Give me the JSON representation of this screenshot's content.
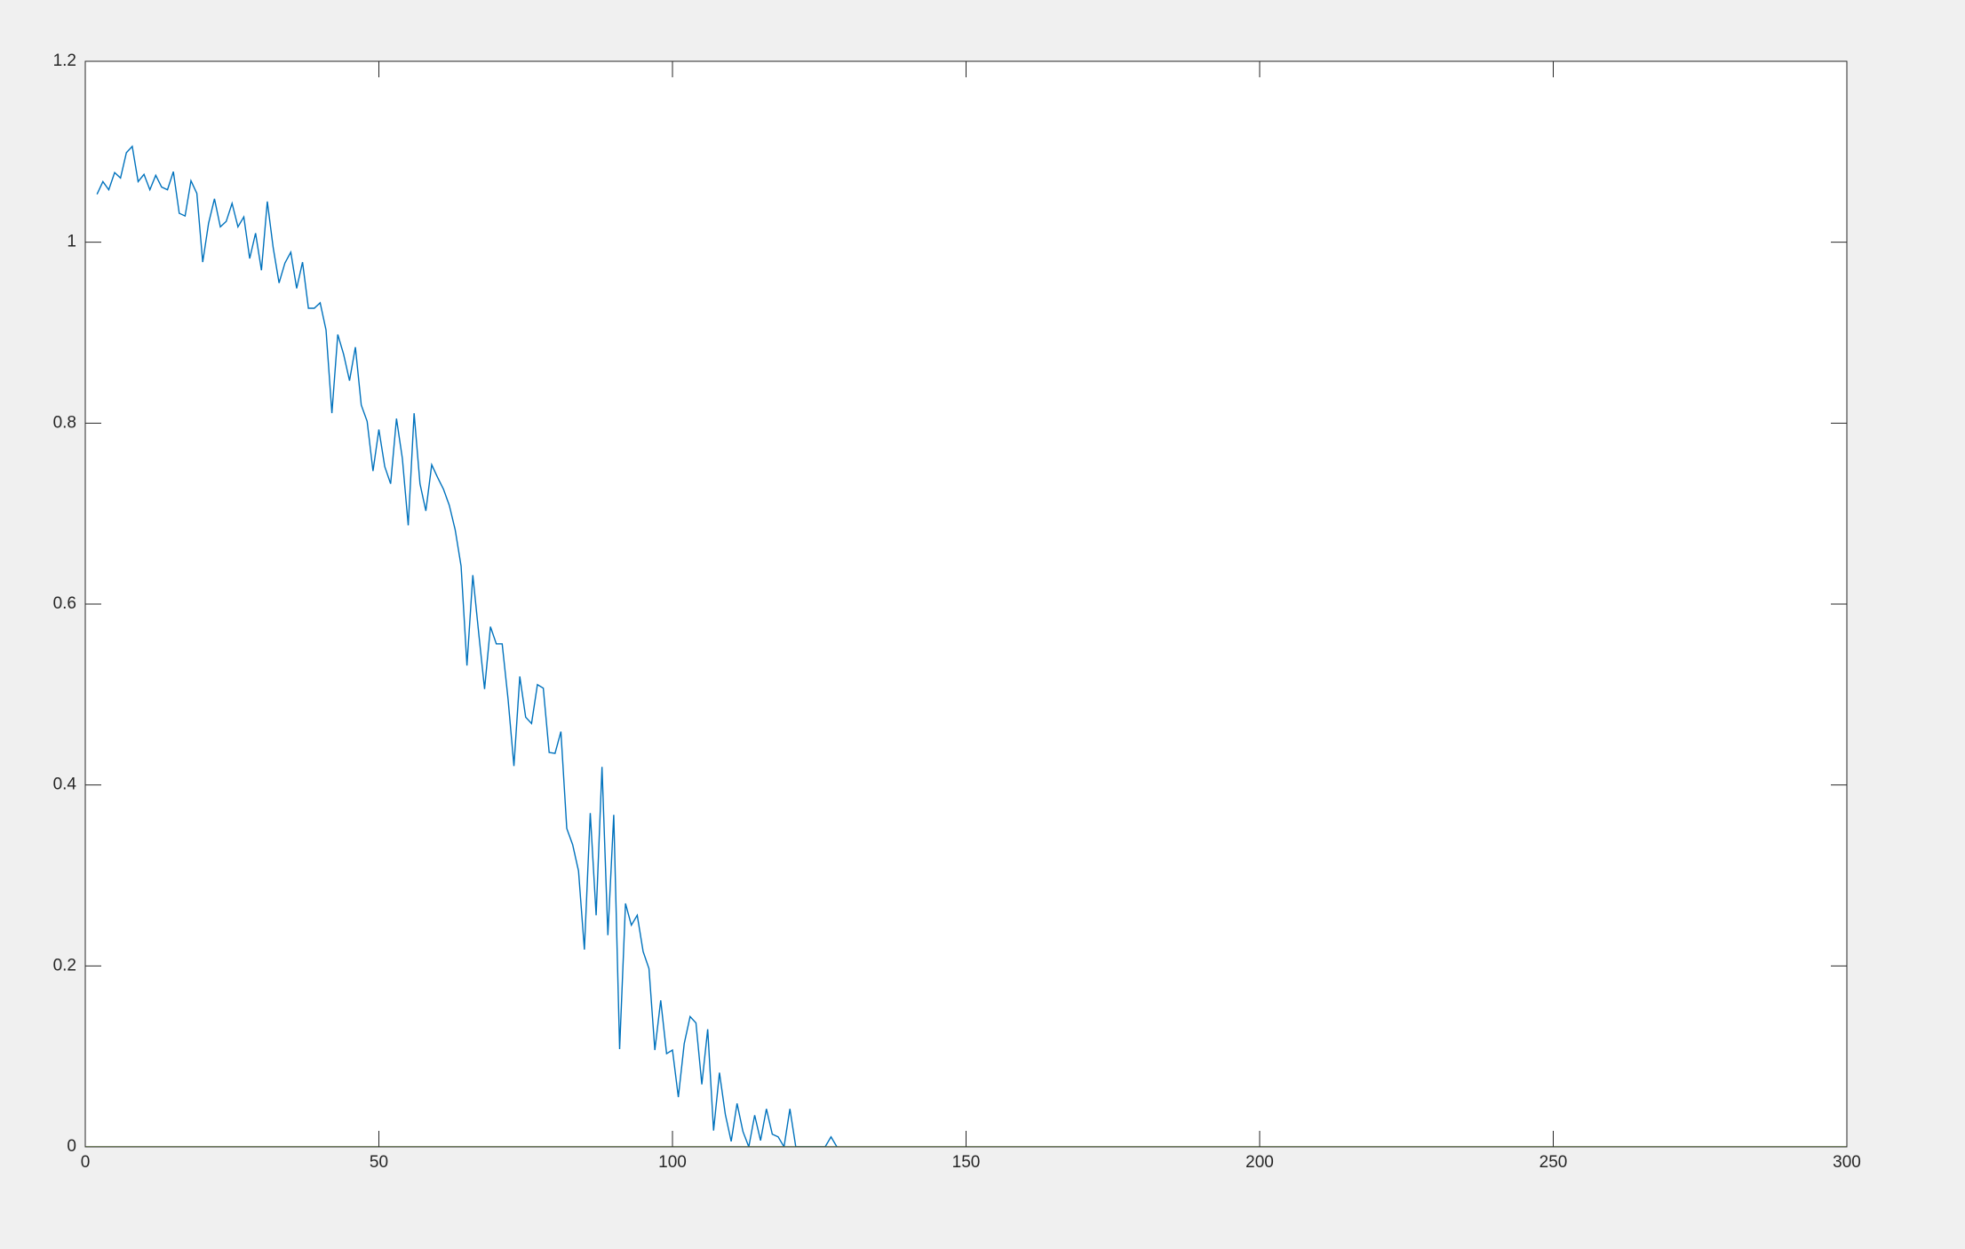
{
  "chart_data": {
    "type": "line",
    "xlim": [
      0,
      300
    ],
    "xticks": [
      0,
      50,
      100,
      150,
      200,
      250,
      300
    ],
    "ylim": [
      0,
      1.2
    ],
    "yticks": [
      0,
      0.2,
      0.4,
      0.6,
      0.8,
      1,
      {
        "value": 1.2,
        "label": "1.2"
      }
    ],
    "series": [
      {
        "color": "#0072BD",
        "x": [
          2,
          3,
          4,
          5,
          6,
          7,
          8,
          9,
          10,
          11,
          12,
          13,
          14,
          15,
          16,
          17,
          18,
          19,
          20,
          21,
          22,
          23,
          24,
          25,
          26,
          27,
          28,
          29,
          30,
          31,
          32,
          33,
          34,
          35,
          36,
          37,
          38,
          39,
          40,
          41,
          42,
          43,
          44,
          45,
          46,
          47,
          48,
          49,
          50,
          51,
          52,
          53,
          54,
          55,
          56,
          57,
          58,
          59,
          60,
          61,
          62,
          63,
          64,
          65,
          66,
          67,
          68,
          69,
          70,
          71,
          72,
          73,
          74,
          75,
          76,
          77,
          78,
          79,
          80,
          81,
          82,
          83,
          84,
          85,
          86,
          87,
          88,
          89,
          90,
          91,
          92,
          93,
          94,
          95,
          96,
          97,
          98,
          99,
          100,
          101,
          102,
          103,
          104,
          105,
          106,
          107,
          108,
          109,
          110,
          111,
          112,
          113,
          114,
          115,
          116,
          117,
          118,
          119,
          120,
          121,
          122,
          123,
          124,
          125,
          126,
          127,
          128
        ],
        "values": [
          1.053,
          1.067,
          1.058,
          1.077,
          1.071,
          1.099,
          1.106,
          1.067,
          1.075,
          1.058,
          1.074,
          1.061,
          1.058,
          1.078,
          1.032,
          1.029,
          1.068,
          1.054,
          0.978,
          1.021,
          1.048,
          1.017,
          1.023,
          1.043,
          1.017,
          1.028,
          0.982,
          1.01,
          0.969,
          1.045,
          0.994,
          0.955,
          0.977,
          0.989,
          0.949,
          0.978,
          0.927,
          0.927,
          0.933,
          0.903,
          0.811,
          0.898,
          0.876,
          0.847,
          0.884,
          0.82,
          0.802,
          0.747,
          0.793,
          0.752,
          0.733,
          0.805,
          0.761,
          0.687,
          0.811,
          0.733,
          0.703,
          0.754,
          0.74,
          0.727,
          0.709,
          0.682,
          0.642,
          0.532,
          0.632,
          0.568,
          0.506,
          0.575,
          0.556,
          0.556,
          0.495,
          0.421,
          0.52,
          0.475,
          0.468,
          0.511,
          0.507,
          0.436,
          0.435,
          0.459,
          0.352,
          0.334,
          0.305,
          0.218,
          0.369,
          0.256,
          0.42,
          0.234,
          0.367,
          0.108,
          0.269,
          0.245,
          0.256,
          0.216,
          0.197,
          0.107,
          0.162,
          0.103,
          0.107,
          0.055,
          0.114,
          0.144,
          0.137,
          0.069,
          0.13,
          0.018,
          0.082,
          0.036,
          0.006,
          0.048,
          0.017,
          0,
          0.035,
          0.007,
          0.042,
          0.014,
          0.011,
          0,
          0.042,
          0,
          0,
          0,
          0,
          0,
          0,
          0.011,
          0
        ]
      },
      {
        "color": "#77AC30",
        "x": [
          0,
          300
        ],
        "values": [
          0,
          0
        ]
      }
    ]
  }
}
